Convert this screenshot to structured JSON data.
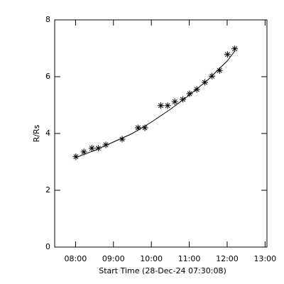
{
  "chart_data": {
    "type": "scatter",
    "xlabel": "Start Time (28-Dec-24 07:30:08)",
    "ylabel": "R/Rs",
    "xlim": [
      7.45,
      13.05
    ],
    "ylim": [
      0,
      8
    ],
    "xticks": [
      {
        "value": 8,
        "label": "08:00"
      },
      {
        "value": 9,
        "label": "09:00"
      },
      {
        "value": 10,
        "label": "10:00"
      },
      {
        "value": 11,
        "label": "11:00"
      },
      {
        "value": 12,
        "label": "12:00"
      },
      {
        "value": 13,
        "label": "13:00"
      }
    ],
    "yticks": [
      0,
      2,
      4,
      6,
      8
    ],
    "color": "#000000",
    "series": [
      {
        "x": [
          8.01,
          8.22,
          8.43,
          8.6,
          8.8,
          9.23,
          9.65,
          9.83,
          10.25,
          10.43,
          10.62,
          10.83,
          11.01,
          11.2,
          11.41,
          11.6,
          11.8,
          12.01,
          12.2
        ],
        "values": [
          3.18,
          3.35,
          3.48,
          3.48,
          3.6,
          3.8,
          4.2,
          4.2,
          4.98,
          4.98,
          5.12,
          5.2,
          5.4,
          5.55,
          5.8,
          6.02,
          6.22,
          6.78,
          6.98
        ]
      },
      {
        "x": [
          8.0,
          8.5,
          9.0,
          9.5,
          10.0,
          10.5,
          11.0,
          11.5,
          12.0,
          12.2
        ],
        "values": [
          3.15,
          3.4,
          3.7,
          4.0,
          4.4,
          4.85,
          5.35,
          5.9,
          6.55,
          6.9
        ]
      }
    ]
  }
}
